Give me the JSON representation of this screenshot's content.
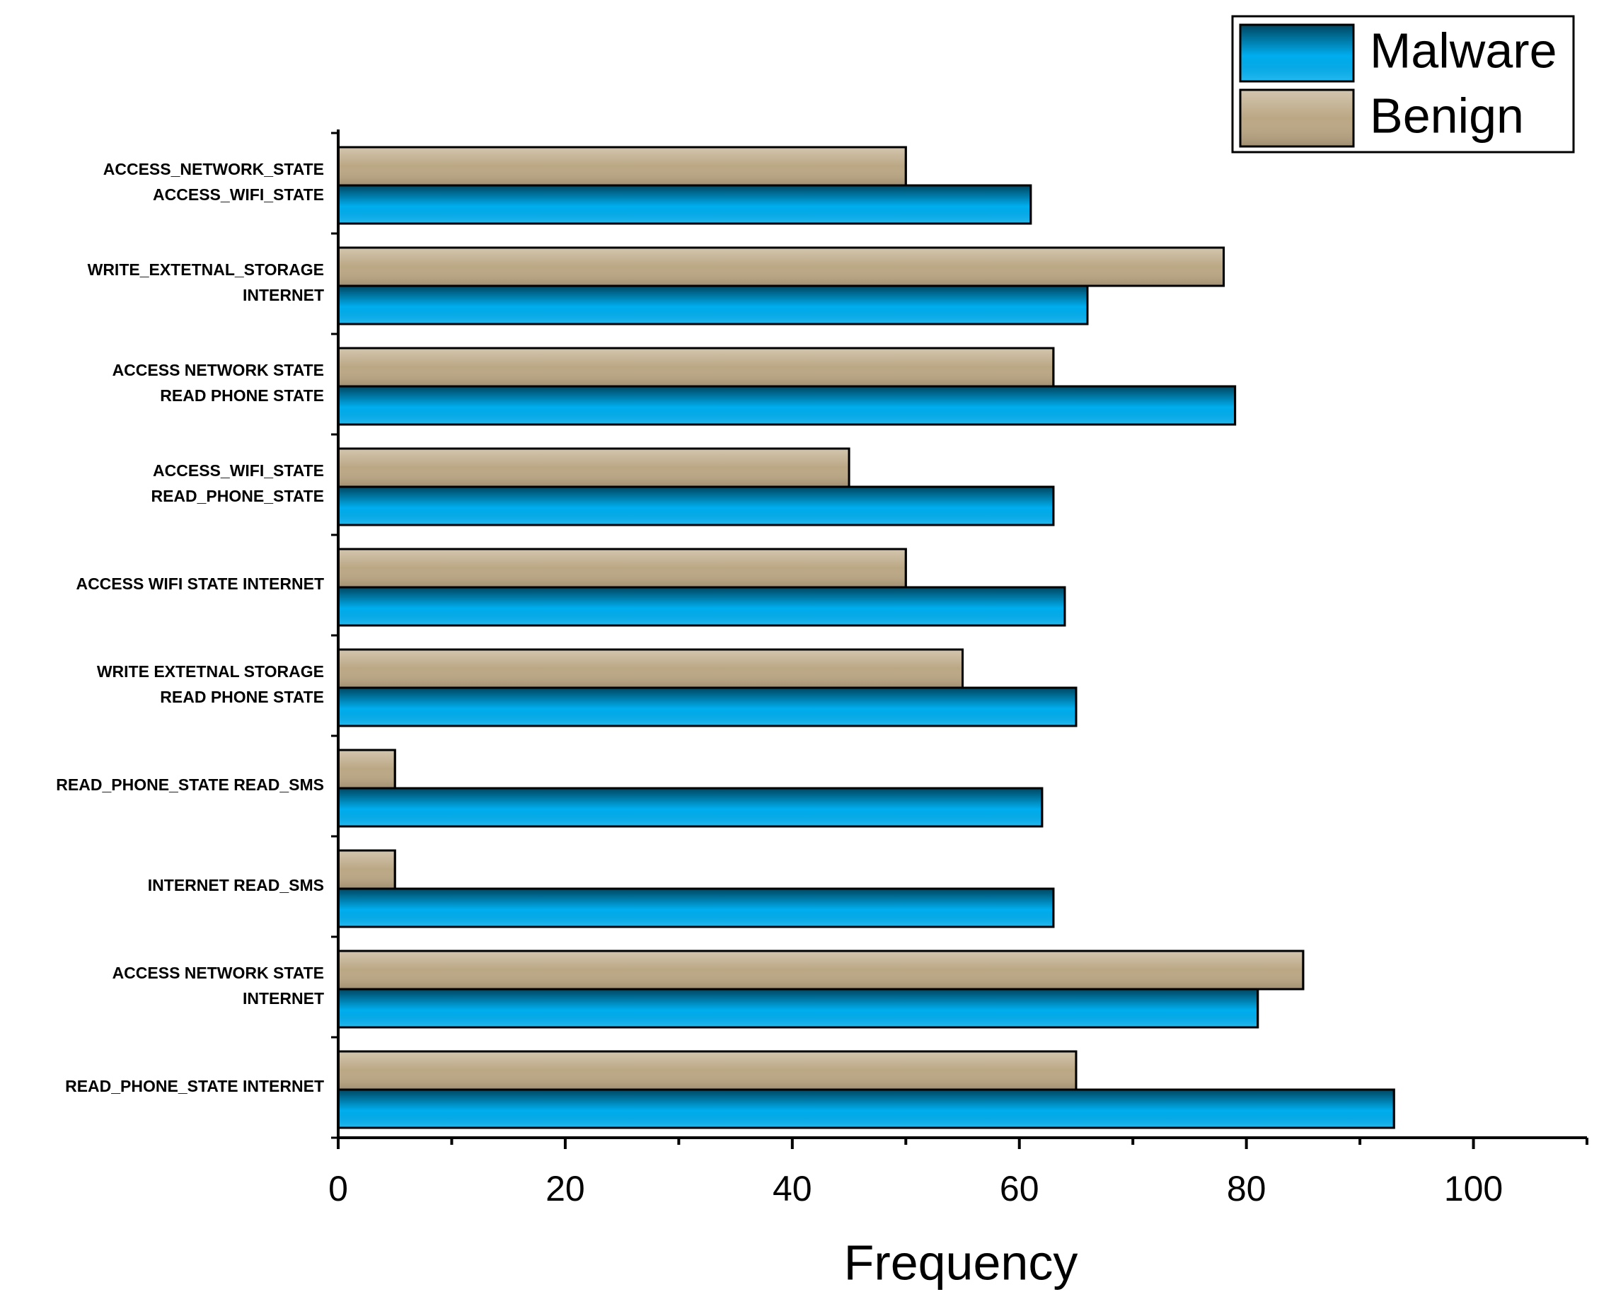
{
  "chart_data": {
    "type": "barh",
    "xlabel": "Frequency",
    "categories": [
      [
        "ACCESS_NETWORK_STATE",
        "ACCESS_WIFI_STATE"
      ],
      [
        "WRITE_EXTETNAL_STORAGE",
        "INTERNET"
      ],
      [
        "ACCESS NETWORK  STATE",
        "READ PHONE STATE"
      ],
      [
        "ACCESS_WIFI_STATE",
        "READ_PHONE_STATE"
      ],
      [
        "ACCESS WIFI STATE INTERNET"
      ],
      [
        "WRITE EXTETNAL STORAGE",
        "READ PHONE STATE"
      ],
      [
        "READ_PHONE_STATE  READ_SMS"
      ],
      [
        "INTERNET READ_SMS"
      ],
      [
        "ACCESS NETWORK  STATE",
        "INTERNET"
      ],
      [
        "READ_PHONE_STATE   INTERNET"
      ]
    ],
    "series": [
      {
        "name": "Malware",
        "color": "#00aeef",
        "values": [
          61,
          66,
          79,
          63,
          64,
          65,
          62,
          63,
          81,
          93
        ]
      },
      {
        "name": "Benign",
        "color": "#bba784",
        "values": [
          50,
          78,
          63,
          45,
          50,
          55,
          5,
          5,
          85,
          65
        ]
      }
    ],
    "xlim": [
      0,
      110
    ],
    "xticks": [
      0,
      20,
      40,
      60,
      80,
      100
    ],
    "xminor_ticks": [
      10,
      30,
      50,
      70,
      90,
      110
    ],
    "legend": "top-right"
  }
}
